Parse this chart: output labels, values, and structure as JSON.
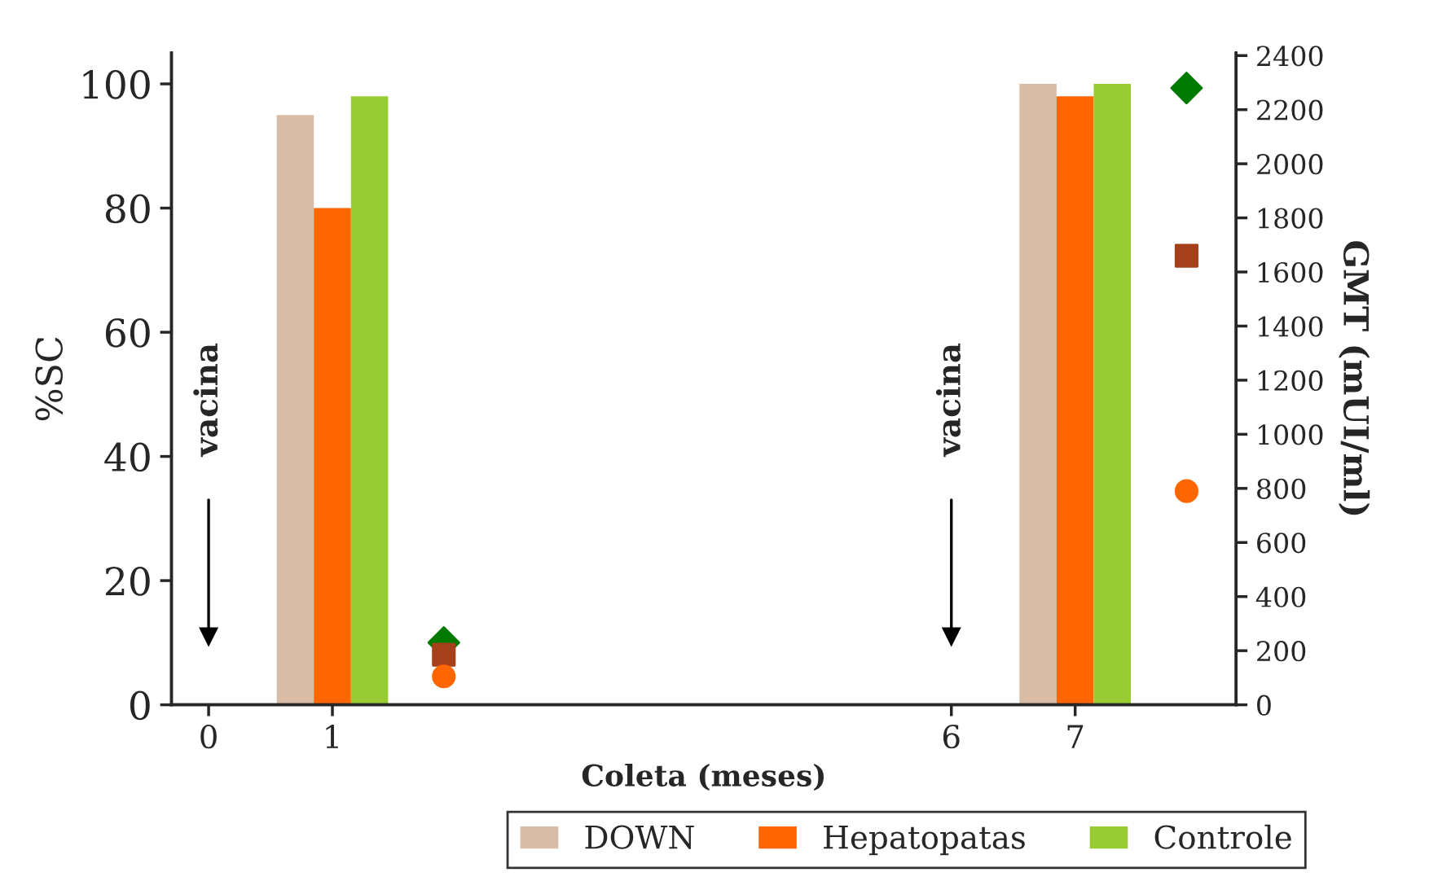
{
  "chart_data": {
    "type": "bar",
    "xlabel": "Coleta (meses)",
    "ylabel": "%SC",
    "y2label": "GMT (mUI/ml)",
    "xlim": [
      -0.3,
      8.3
    ],
    "xticks": [
      0,
      1,
      6,
      7
    ],
    "ylim": [
      0,
      105
    ],
    "yticks": [
      0,
      20,
      40,
      60,
      80,
      100
    ],
    "y2lim": [
      0,
      2410
    ],
    "y2ticks": [
      0,
      200,
      400,
      600,
      800,
      1000,
      1200,
      1400,
      1600,
      1800,
      2000,
      2200,
      2400
    ],
    "series": [
      {
        "name": "DOWN",
        "color": "#d9bca5",
        "x": [
          1,
          7
        ],
        "values": [
          95,
          100
        ]
      },
      {
        "name": "Hepatopatas",
        "color": "#ff6600",
        "x": [
          1,
          7
        ],
        "values": [
          80,
          98
        ]
      },
      {
        "name": "Controle",
        "color": "#99cc33",
        "x": [
          1,
          7
        ],
        "values": [
          98,
          100
        ]
      },
      {
        "type": "scatter",
        "axis": "y2",
        "marker": "diamond",
        "color": "#007a00",
        "x": [
          1.9,
          7.9
        ],
        "values": [
          230,
          2280
        ]
      },
      {
        "type": "scatter",
        "axis": "y2",
        "marker": "square",
        "color": "#a5401a",
        "x": [
          1.9,
          7.9
        ],
        "values": [
          185,
          1660
        ]
      },
      {
        "type": "scatter",
        "axis": "y2",
        "marker": "circle",
        "color": "#ff6600",
        "x": [
          1.9,
          7.9
        ],
        "values": [
          105,
          790
        ]
      }
    ],
    "ref_lines": [
      {
        "axis": "x",
        "value": 0,
        "label": "vacina"
      },
      {
        "axis": "x",
        "value": 6,
        "label": "vacina"
      }
    ],
    "legend": "bottom right",
    "grid": false
  }
}
